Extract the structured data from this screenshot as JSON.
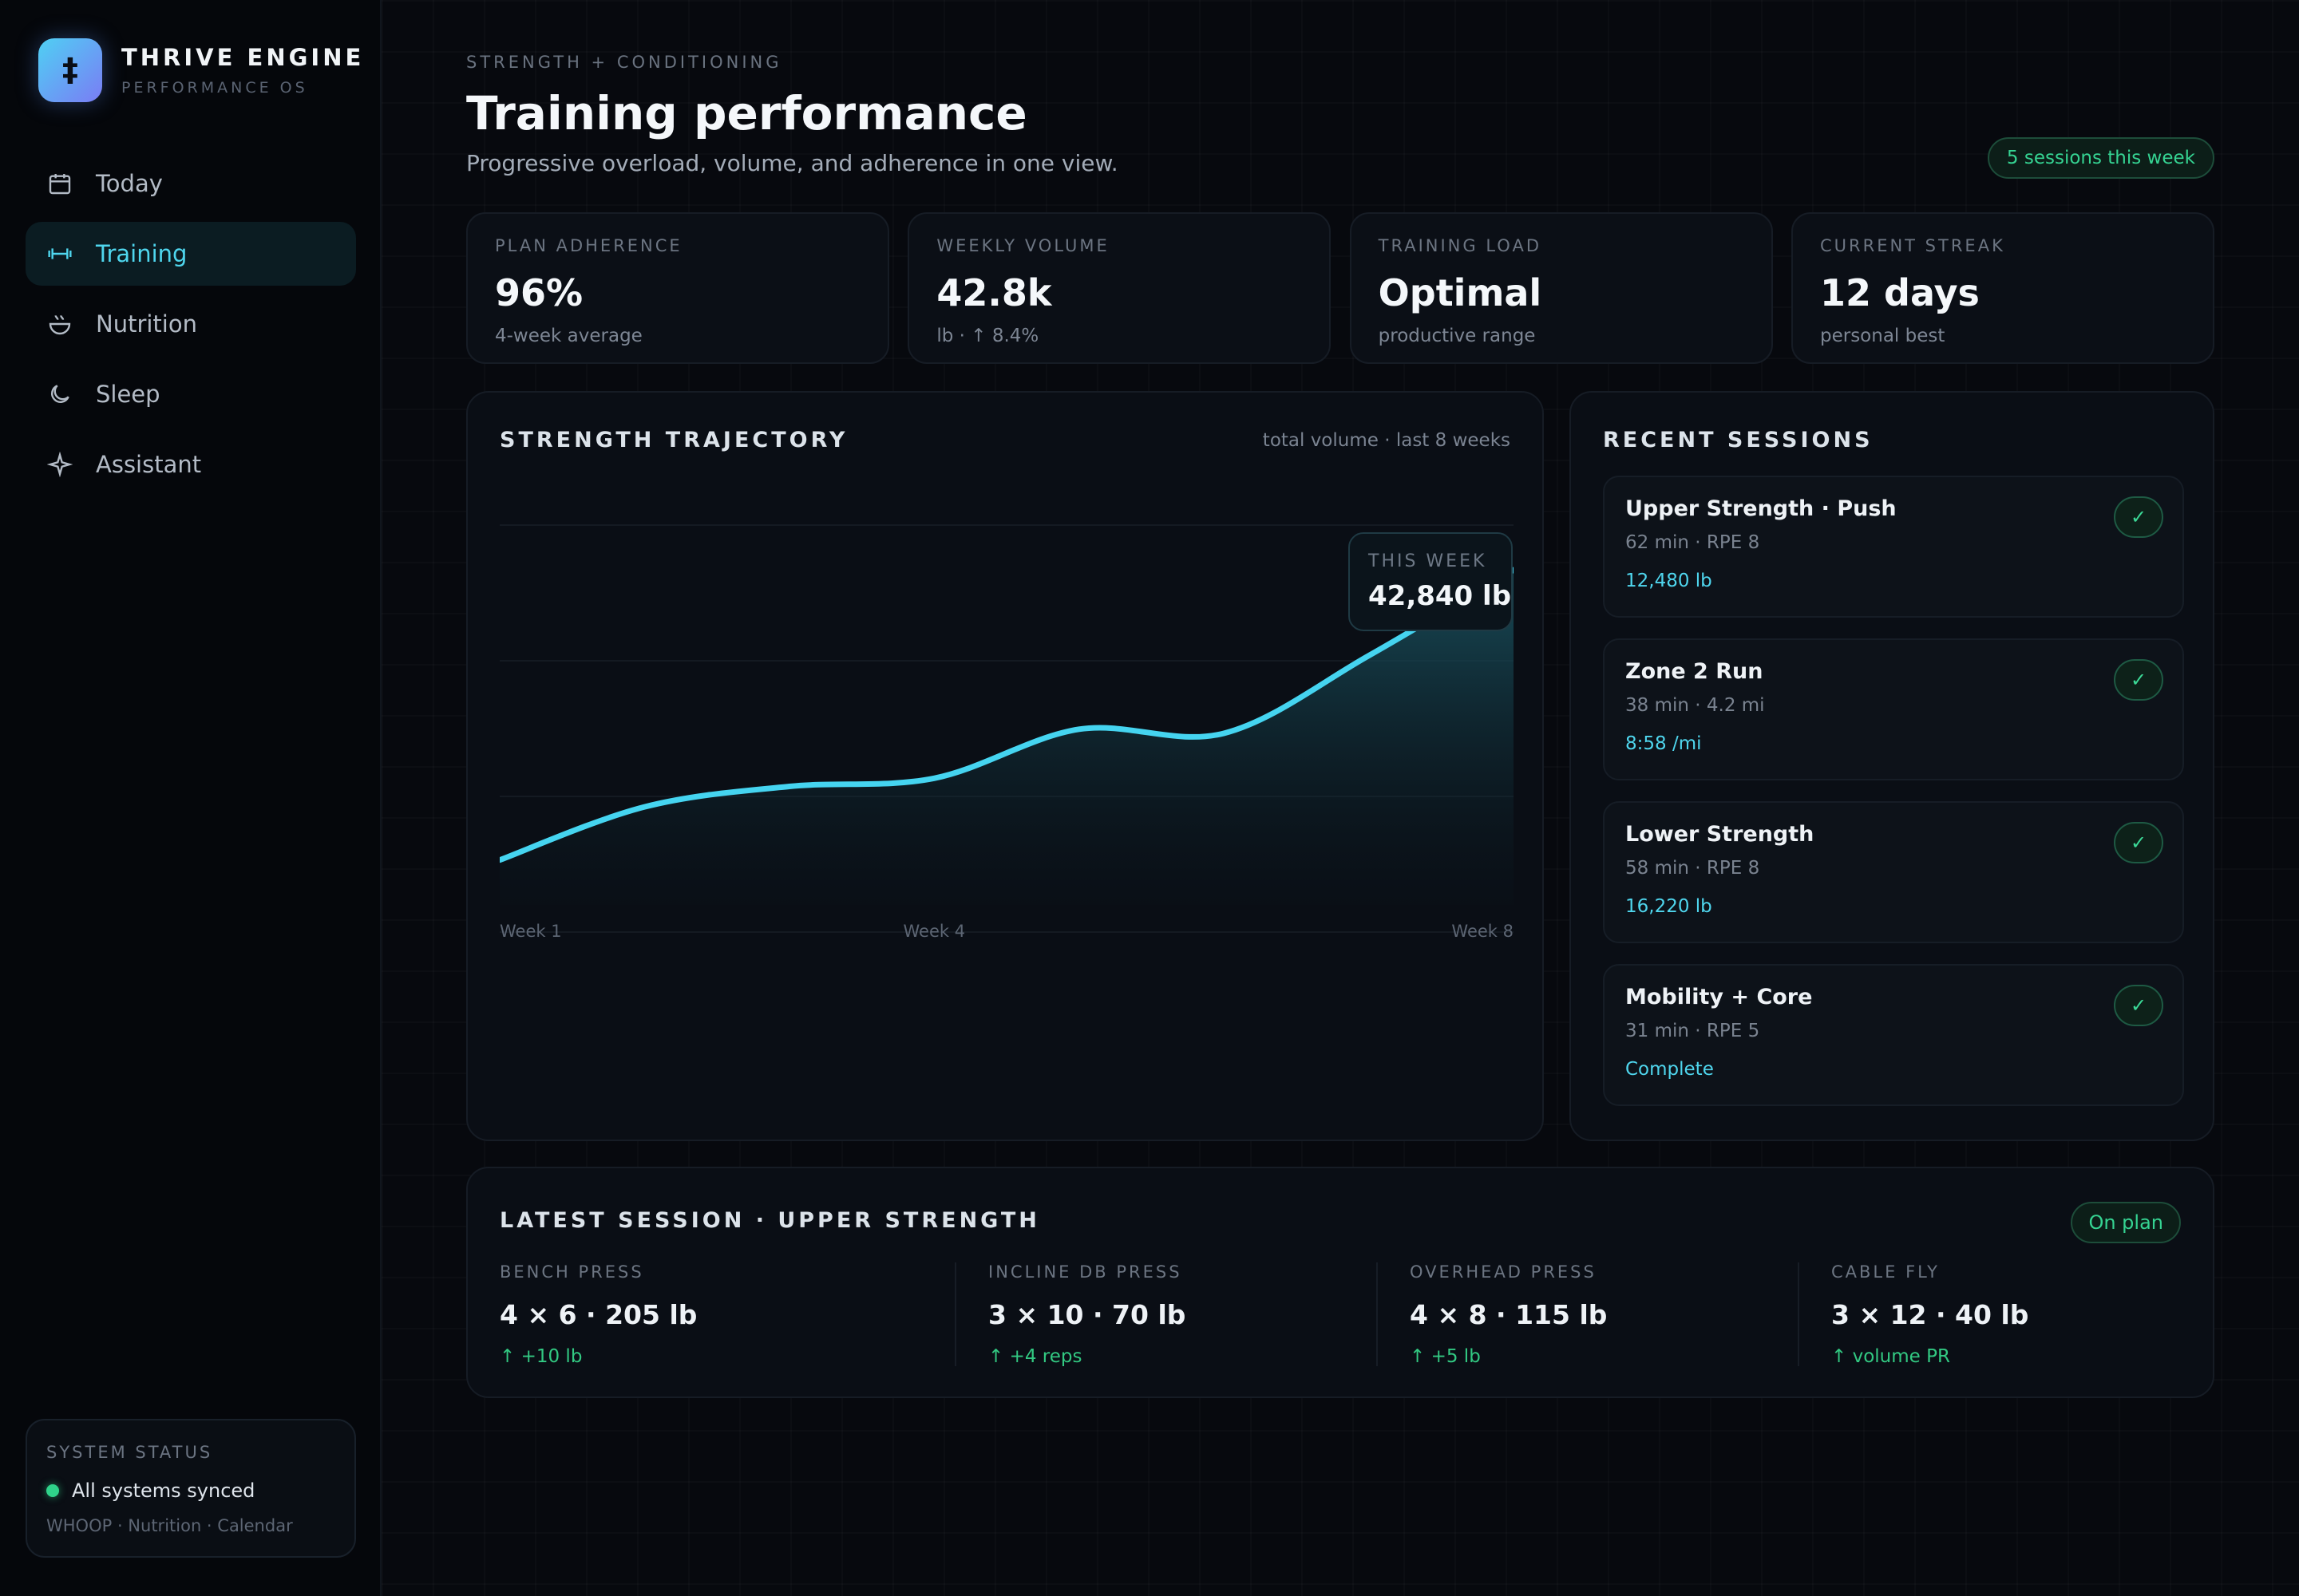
{
  "app": {
    "name": "THRIVE ENGINE",
    "subtitle": "PERFORMANCE OS",
    "logo_glyph": "‡"
  },
  "sidebar": {
    "items": [
      {
        "label": "Today",
        "icon": "calendar-icon",
        "active": false
      },
      {
        "label": "Training",
        "icon": "dumbbell-icon",
        "active": true
      },
      {
        "label": "Nutrition",
        "icon": "bowl-icon",
        "active": false
      },
      {
        "label": "Sleep",
        "icon": "moon-icon",
        "active": false
      },
      {
        "label": "Assistant",
        "icon": "sparkle-icon",
        "active": false
      }
    ],
    "status": {
      "title": "SYSTEM STATUS",
      "message": "All systems synced",
      "sources": "WHOOP · Nutrition · Calendar"
    }
  },
  "header": {
    "eyebrow": "STRENGTH + CONDITIONING",
    "title": "Training performance",
    "subtitle": "Progressive overload, volume, and adherence in one view.",
    "badge": "5 sessions this week"
  },
  "kpis": [
    {
      "label": "PLAN ADHERENCE",
      "value": "96%",
      "sub": "4-week average"
    },
    {
      "label": "WEEKLY VOLUME",
      "value": "42.8k",
      "sub": "lb · ↑ 8.4%"
    },
    {
      "label": "TRAINING LOAD",
      "value": "Optimal",
      "sub": "productive range"
    },
    {
      "label": "CURRENT STREAK",
      "value": "12 days",
      "sub": "personal best"
    }
  ],
  "trajectory": {
    "title": "STRENGTH TRAJECTORY",
    "meta": "total volume · last 8 weeks",
    "tooltip_label": "THIS WEEK",
    "tooltip_value": "42,840 lb"
  },
  "chart_data": {
    "type": "area",
    "title": "STRENGTH TRAJECTORY",
    "subtitle": "total volume · last 8 weeks",
    "x": [
      1,
      2,
      3,
      4,
      5,
      6,
      7,
      8
    ],
    "x_tick_labels": [
      "Week 1",
      "Week 4",
      "Week 8"
    ],
    "x_tick_positions": [
      1,
      4,
      8
    ],
    "values": [
      0.11,
      0.24,
      0.29,
      0.31,
      0.43,
      0.42,
      0.61,
      0.82
    ],
    "ylim": [
      0,
      1
    ],
    "grid": true,
    "annotation": {
      "x": 8,
      "label": "THIS WEEK",
      "value": "42,840 lb"
    },
    "colors": {
      "line": "#45d4f0",
      "fill": "#1b5866"
    }
  },
  "recent_sessions": {
    "title": "RECENT SESSIONS",
    "items": [
      {
        "name": "Upper Strength · Push",
        "meta": "62 min · RPE 8",
        "value": "12,480 lb",
        "check": "✓"
      },
      {
        "name": "Zone 2 Run",
        "meta": "38 min · 4.2 mi",
        "value": "8:58 /mi",
        "check": "✓"
      },
      {
        "name": "Lower Strength",
        "meta": "58 min · RPE 8",
        "value": "16,220 lb",
        "check": "✓"
      },
      {
        "name": "Mobility + Core",
        "meta": "31 min · RPE 5",
        "value": "Complete",
        "check": "✓"
      }
    ]
  },
  "latest_session": {
    "title": "LATEST SESSION · UPPER STRENGTH",
    "badge": "On plan",
    "exercises": [
      {
        "name": "BENCH PRESS",
        "value": "4 × 6 · 205 lb",
        "delta": "↑ +10 lb"
      },
      {
        "name": "INCLINE DB PRESS",
        "value": "3 × 10 · 70 lb",
        "delta": "↑ +4 reps"
      },
      {
        "name": "OVERHEAD PRESS",
        "value": "4 × 8 · 115 lb",
        "delta": "↑ +5 lb"
      },
      {
        "name": "CABLE FLY",
        "value": "3 × 12 · 40 lb",
        "delta": "↑ volume PR"
      }
    ]
  },
  "colors": {
    "accent": "#4fd6ee",
    "success": "#35d392",
    "background": "#07090e"
  }
}
